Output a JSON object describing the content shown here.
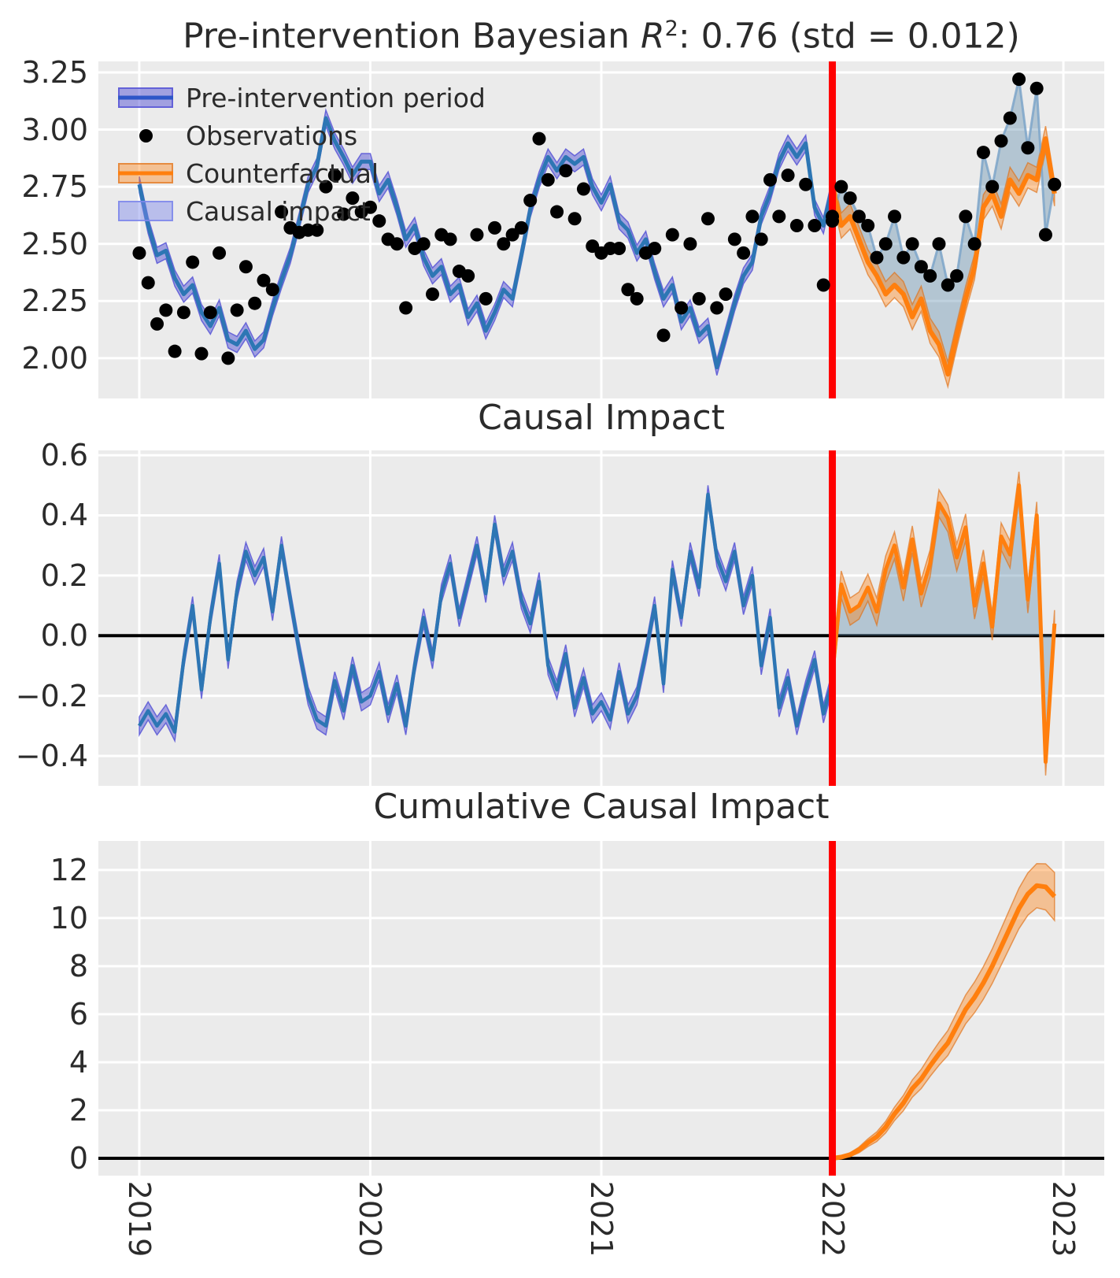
{
  "colors": {
    "figure_bg": "#ffffff",
    "panel_bg": "#ebebeb",
    "grid": "#ffffff",
    "text": "#2b2b2b",
    "fit_line": "#2d76b4",
    "fit_band": "rgba(88,86,214,0.50)",
    "fit_band_edge": "rgba(88,86,214,0.85)",
    "legend_pre_line": "#2e56c8",
    "counterfactual_line": "#ff7f0e",
    "counterfactual_band": "rgba(255,127,14,0.40)",
    "counterfactual_band_edge": "rgba(222,110,20,0.65)",
    "causal_impact_fill": "rgba(96,139,173,0.40)",
    "observations_dot": "#000000",
    "observations_line": "rgba(125,164,201,0.85)",
    "intervention_line": "#ff0000",
    "zero_line": "#000000",
    "legend_patch_fill": "rgba(125,135,235,0.45)",
    "legend_patch_edge": "rgba(125,135,235,0.85)"
  },
  "x_axis": {
    "domain": [
      2018.823,
      2023.177
    ],
    "ticks": [
      2019,
      2020,
      2021,
      2022,
      2023
    ],
    "labels": [
      "2019",
      "2020",
      "2021",
      "2022",
      "2023"
    ]
  },
  "intervention_x": 2022,
  "time_grid": {
    "pre": {
      "start": 2019.0,
      "step": 0.038462,
      "count": 79
    },
    "post": {
      "start": 2022.0,
      "step": 0.038462,
      "count": 26
    }
  },
  "chart_data": [
    {
      "type": "line",
      "title": "Pre-intervention Bayesian R2: 0.76 (std = 0.012)",
      "title_parts": {
        "prefix": "Pre-intervention Bayesian ",
        "math_symbol": "R",
        "exponent": "2",
        "suffix": ": 0.76 (std = 0.012)"
      },
      "ylim": [
        1.824,
        3.298
      ],
      "ytick_values": [
        3.25,
        3.0,
        2.75,
        2.5,
        2.25,
        2.0
      ],
      "ytick_labels": [
        "3.25",
        "3.00",
        "2.75",
        "2.50",
        "2.25",
        "2.00"
      ],
      "legend": {
        "items": [
          {
            "label": "Pre-intervention period",
            "swatch": "band-line-blue"
          },
          {
            "label": "Observations",
            "swatch": "dot"
          },
          {
            "label": "Counterfactual",
            "swatch": "band-line-orange"
          },
          {
            "label": "Causal impact",
            "swatch": "patch-lightblue"
          }
        ]
      },
      "series": {
        "fit_mean": [
          2.76,
          2.58,
          2.45,
          2.47,
          2.35,
          2.28,
          2.32,
          2.2,
          2.14,
          2.22,
          2.08,
          2.06,
          2.12,
          2.04,
          2.08,
          2.22,
          2.34,
          2.45,
          2.6,
          2.76,
          2.84,
          3.05,
          2.95,
          2.88,
          2.8,
          2.86,
          2.86,
          2.72,
          2.78,
          2.66,
          2.52,
          2.58,
          2.44,
          2.36,
          2.4,
          2.28,
          2.32,
          2.18,
          2.24,
          2.12,
          2.2,
          2.3,
          2.26,
          2.45,
          2.65,
          2.78,
          2.88,
          2.82,
          2.88,
          2.85,
          2.88,
          2.75,
          2.68,
          2.76,
          2.6,
          2.56,
          2.46,
          2.52,
          2.38,
          2.26,
          2.32,
          2.16,
          2.22,
          2.1,
          2.14,
          1.96,
          2.1,
          2.24,
          2.36,
          2.42,
          2.62,
          2.72,
          2.86,
          2.94,
          2.88,
          2.94,
          2.66,
          2.58,
          2.75
        ],
        "fit_band_halfwidth": 0.035,
        "observations_pre": [
          2.46,
          2.33,
          2.15,
          2.21,
          2.03,
          2.2,
          2.42,
          2.02,
          2.2,
          2.46,
          2.0,
          2.21,
          2.4,
          2.24,
          2.34,
          2.3,
          2.64,
          2.57,
          2.55,
          2.56,
          2.56,
          2.75,
          2.8,
          2.63,
          2.7,
          2.64,
          2.66,
          2.6,
          2.52,
          2.5,
          2.22,
          2.48,
          2.5,
          2.28,
          2.54,
          2.52,
          2.38,
          2.36,
          2.54,
          2.26,
          2.57,
          2.5,
          2.54,
          2.57,
          2.69,
          2.96,
          2.78,
          2.64,
          2.82,
          2.61,
          2.74,
          2.49,
          2.46,
          2.48,
          2.48,
          2.3,
          2.26,
          2.46,
          2.48,
          2.1,
          2.54,
          2.22,
          2.5,
          2.26,
          2.61,
          2.22,
          2.28,
          2.52,
          2.46,
          2.62,
          2.52,
          2.78,
          2.62,
          2.8,
          2.58,
          2.76,
          2.58,
          2.32,
          2.6
        ],
        "counterfactual_mean": [
          2.75,
          2.58,
          2.62,
          2.52,
          2.42,
          2.36,
          2.28,
          2.32,
          2.28,
          2.18,
          2.26,
          2.12,
          2.06,
          1.93,
          2.1,
          2.26,
          2.4,
          2.66,
          2.72,
          2.62,
          2.78,
          2.72,
          2.8,
          2.78,
          2.96,
          2.72
        ],
        "counterfactual_band_halfwidth": 0.055,
        "observations_post": [
          2.62,
          2.75,
          2.7,
          2.62,
          2.58,
          2.44,
          2.5,
          2.62,
          2.44,
          2.5,
          2.4,
          2.36,
          2.5,
          2.32,
          2.36,
          2.62,
          2.5,
          2.9,
          2.75,
          2.95,
          3.05,
          3.22,
          2.92,
          3.18,
          2.54,
          2.76
        ]
      }
    },
    {
      "type": "line",
      "title": "Causal Impact",
      "ylim": [
        -0.4995,
        0.616
      ],
      "ytick_values": [
        0.6,
        0.4,
        0.2,
        0.0,
        -0.2,
        -0.4
      ],
      "ytick_labels": [
        "0.6",
        "0.4",
        "0.2",
        "0.0",
        "−0.2",
        "−0.4"
      ],
      "series": {
        "impact_pre": [
          -0.3,
          -0.25,
          -0.3,
          -0.26,
          -0.32,
          -0.08,
          0.1,
          -0.18,
          0.06,
          0.24,
          -0.08,
          0.15,
          0.28,
          0.2,
          0.26,
          0.08,
          0.3,
          0.12,
          -0.05,
          -0.2,
          -0.28,
          -0.3,
          -0.15,
          -0.25,
          -0.1,
          -0.22,
          -0.2,
          -0.12,
          -0.26,
          -0.16,
          -0.3,
          -0.1,
          0.06,
          -0.08,
          0.14,
          0.24,
          0.06,
          0.18,
          0.3,
          0.14,
          0.37,
          0.2,
          0.28,
          0.12,
          0.04,
          0.18,
          -0.1,
          -0.18,
          -0.06,
          -0.24,
          -0.14,
          -0.26,
          -0.22,
          -0.28,
          -0.12,
          -0.26,
          -0.2,
          -0.06,
          0.1,
          -0.16,
          0.22,
          0.06,
          0.28,
          0.16,
          0.47,
          0.26,
          0.18,
          0.28,
          0.1,
          0.2,
          -0.1,
          0.06,
          -0.24,
          -0.14,
          -0.3,
          -0.18,
          -0.08,
          -0.26,
          -0.15
        ],
        "impact_pre_band_halfwidth": 0.03,
        "impact_post": [
          -0.13,
          0.17,
          0.08,
          0.1,
          0.16,
          0.08,
          0.22,
          0.3,
          0.16,
          0.32,
          0.14,
          0.24,
          0.44,
          0.39,
          0.26,
          0.36,
          0.1,
          0.24,
          0.03,
          0.33,
          0.27,
          0.5,
          0.12,
          0.4,
          -0.42,
          0.04
        ],
        "impact_post_band_halfwidth": 0.045,
        "zero_reference": 0
      }
    },
    {
      "type": "area",
      "title": "Cumulative Causal Impact",
      "ylim": [
        -0.721,
        13.21
      ],
      "ytick_values": [
        12,
        10,
        8,
        6,
        4,
        2,
        0
      ],
      "ytick_labels": [
        "12",
        "10",
        "8",
        "6",
        "4",
        "2",
        "0"
      ],
      "series": {
        "cumulative_mean": [
          0,
          0.05,
          0.15,
          0.35,
          0.65,
          0.9,
          1.3,
          1.85,
          2.3,
          2.9,
          3.3,
          3.85,
          4.35,
          4.8,
          5.5,
          6.2,
          6.7,
          7.3,
          8.0,
          8.8,
          9.6,
          10.4,
          11.0,
          11.35,
          11.3,
          10.9
        ],
        "cumulative_band_halfwidths": [
          0,
          0.04,
          0.08,
          0.12,
          0.16,
          0.2,
          0.24,
          0.28,
          0.32,
          0.36,
          0.4,
          0.44,
          0.48,
          0.52,
          0.56,
          0.6,
          0.64,
          0.68,
          0.72,
          0.76,
          0.8,
          0.84,
          0.88,
          0.92,
          0.96,
          1.0
        ],
        "zero_reference": 0
      }
    }
  ]
}
